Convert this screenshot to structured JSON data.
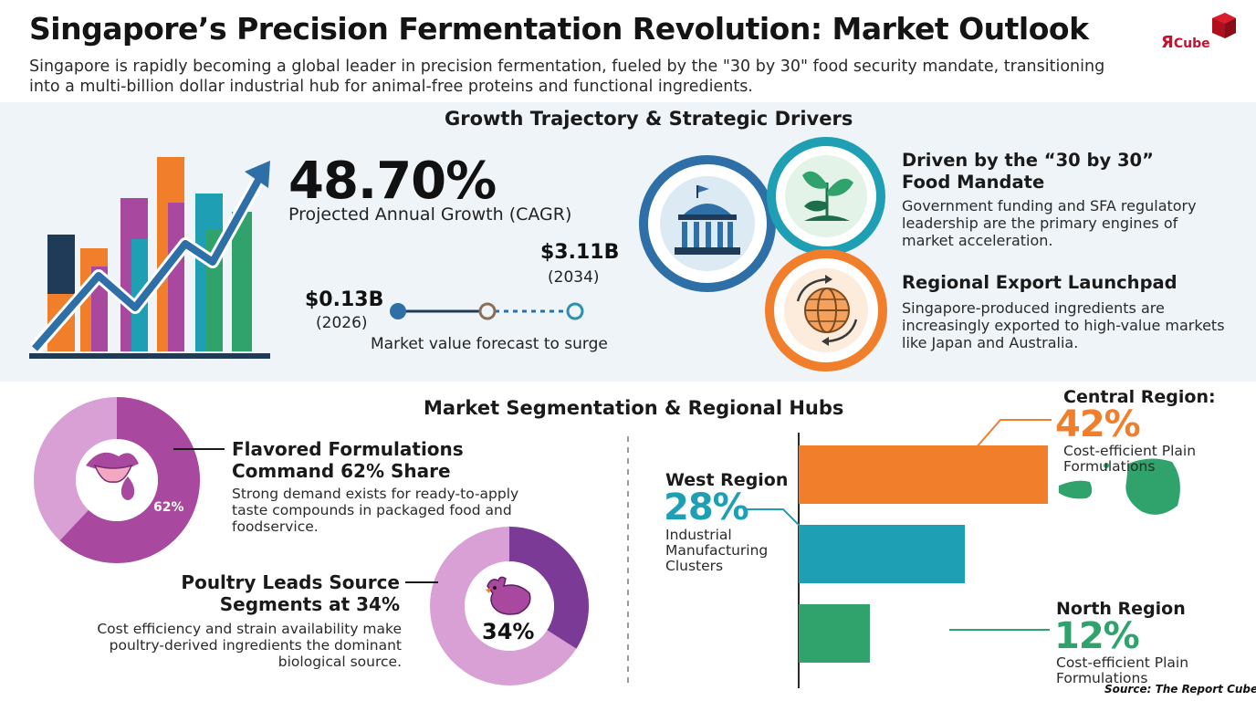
{
  "header": {
    "title": "Singapore’s Precision Fermentation Revolution: Market Outlook",
    "subtitle": "Singapore is rapidly becoming a global leader in precision fermentation, fueled by the \"30 by 30\" food security mandate, transitioning into a multi-billion dollar industrial hub for animal-free proteins and functional ingredients.",
    "logo_mark": "Я",
    "logo_word": "Cube"
  },
  "growth": {
    "section_title": "Growth Trajectory & Strategic Drivers",
    "cagr_value": "48.70%",
    "cagr_label": "Projected Annual Growth (CAGR)",
    "start_value": "$0.13B",
    "start_year": "(2026)",
    "end_value": "$3.11B",
    "end_year": "(2034)",
    "forecast_caption": "Market value forecast to surge",
    "icons": [
      "bar-chart-icon",
      "upward-arrow-icon"
    ]
  },
  "drivers": [
    {
      "title": "Driven by the “30 by 30” Food Mandate",
      "text": "Government funding and SFA regulatory leadership are the primary engines of market acceleration.",
      "icon": "government-building-icon"
    },
    {
      "title": "",
      "text": "",
      "icon": "seedling-icon"
    },
    {
      "title": "Regional Export Launchpad",
      "text": "Singapore-produced ingredients are increasingly exported to high-value markets like Japan and Australia.",
      "icon": "globe-arrows-icon"
    }
  ],
  "segmentation": {
    "section_title": "Market Segmentation & Regional Hubs",
    "flavored": {
      "title": "Flavored Formulations Command 62% Share",
      "text": "Strong demand exists for ready-to-apply taste compounds in packaged food and foodservice.",
      "pct_label": "62%",
      "share": 62,
      "icon": "tongue-taste-icon"
    },
    "poultry": {
      "title": "Poultry Leads Source Segments at 34%",
      "text": "Cost efficiency and strain availability make poultry-derived ingredients the dominant biological source.",
      "pct_label": "34%",
      "share": 34,
      "icon": "chicken-icon"
    }
  },
  "regions": [
    {
      "name": "Central Region:",
      "pct": "42%",
      "value": 42,
      "desc": "Cost-efficient Plain Formulations",
      "color": "#f07e2a"
    },
    {
      "name": "West Region",
      "pct": "28%",
      "value": 28,
      "desc": "Industrial Manufacturing Clusters",
      "color": "#1f9fb3"
    },
    {
      "name": "North Region",
      "pct": "12%",
      "value": 12,
      "desc": "Cost-efficient Plain Formulations",
      "color": "#2fa36b"
    }
  ],
  "source": "Source: The Report Cube",
  "colors": {
    "orange": "#f07e2a",
    "teal": "#1f9fb3",
    "green": "#2fa36b",
    "purple": "#a8489e",
    "light_purple": "#d6a6d6",
    "dark_navy": "#1f3b57"
  }
}
